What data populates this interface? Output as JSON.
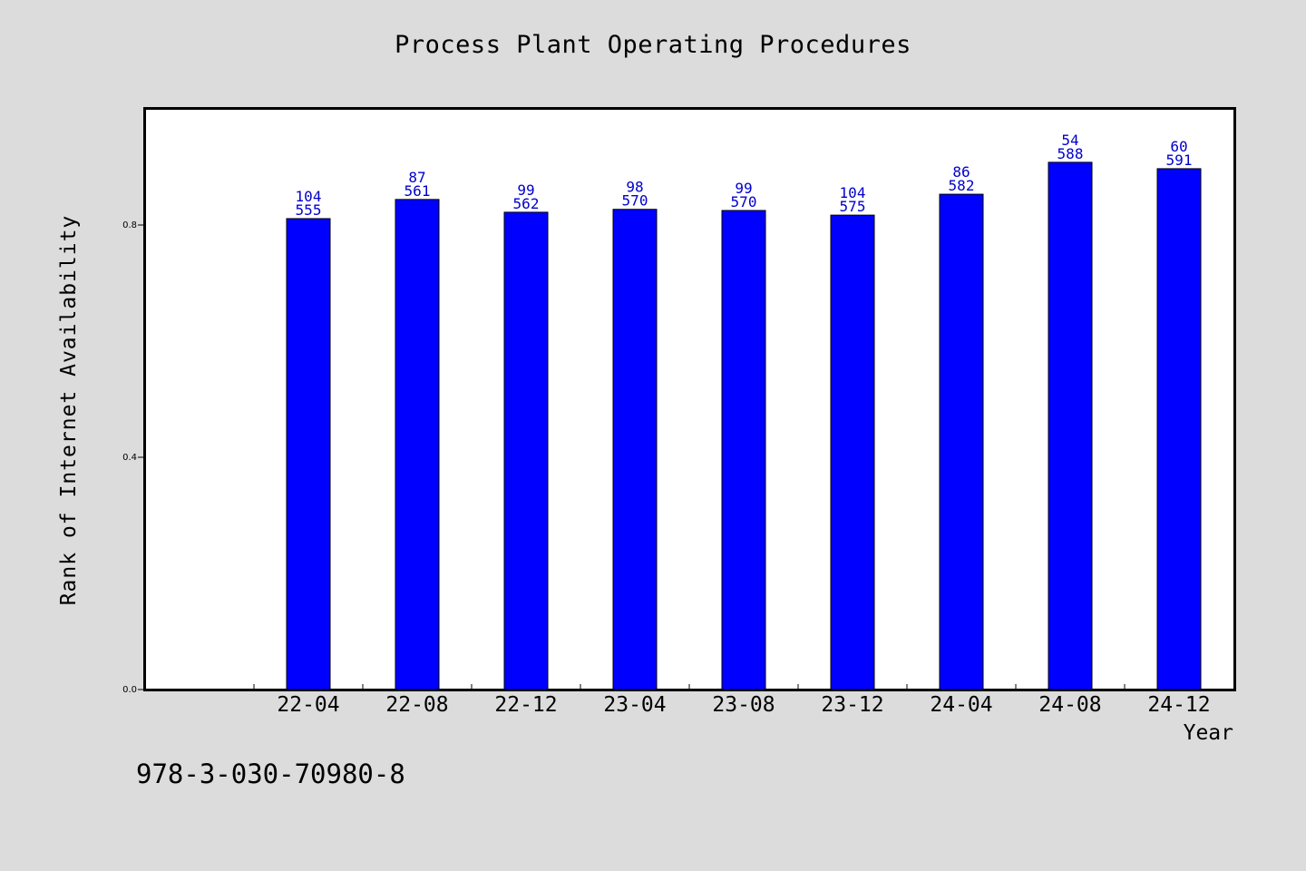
{
  "chart_data": {
    "type": "bar",
    "title": "Process Plant Operating Procedures",
    "xlabel": "Year",
    "ylabel": "Rank of Internet Availability",
    "ylim": [
      0,
      1.0
    ],
    "yticks": [
      "0.0",
      "0.4",
      "0.8"
    ],
    "ytick_values": [
      0.0,
      0.4,
      0.8
    ],
    "grid": false,
    "categories": [
      "22-04",
      "22-08",
      "22-12",
      "23-04",
      "23-08",
      "23-12",
      "24-04",
      "24-08",
      "24-12"
    ],
    "values": [
      0.811,
      0.844,
      0.822,
      0.827,
      0.825,
      0.817,
      0.853,
      0.908,
      0.897
    ],
    "label_top": [
      "104",
      "87",
      "99",
      "98",
      "99",
      "104",
      "86",
      "54",
      "60"
    ],
    "label_bottom": [
      "555",
      "561",
      "562",
      "570",
      "570",
      "575",
      "582",
      "588",
      "591"
    ],
    "bar_color": "#0000ff",
    "label_color": "#0000cc"
  },
  "footer": {
    "code": "978-3-030-70980-8"
  }
}
